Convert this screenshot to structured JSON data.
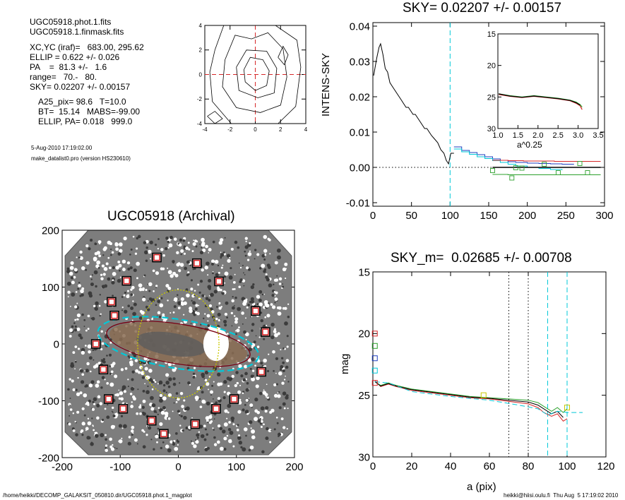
{
  "info": {
    "files": [
      "UGC05918.phot.1.fits",
      "UGC05918.1.finmask.fits"
    ],
    "params": [
      "XC,YC (iraf)=   683.00, 295.62",
      "ELLIP = 0.622 +/- 0.026",
      "PA    =  81.3 +/-   1.6",
      "range=   70.-   80.",
      "SKY= 0.02207 +/- 0.00157"
    ],
    "derived": [
      "A25_pix= 98.6   T=10.0",
      "BT=  15.14   MABS=-99.00",
      "ELLIP, PA= 0.018   999.0"
    ],
    "date": "5-Aug-2010 17:19:02.00",
    "program": "make_datalist0.pro (version HS230610)"
  },
  "footer": {
    "path": "/home/heikki/DECOMP_GALAKSIT_050810.dir/UGC05918.phot.1_magplot",
    "user": "heikki@hiisi.oulu.fi  Thu Aug  5 17:19:02 2010"
  },
  "colors": {
    "black": "#000000",
    "red": "#d62728",
    "green": "#2ca02c",
    "blue": "#1f3fbf",
    "cyan": "#00c8d8",
    "yellow": "#c8c800",
    "maroon": "#7a0010",
    "grey": "#9a9a9a"
  },
  "chart_data": [
    {
      "id": "contour",
      "type": "contour",
      "title": "",
      "xlim": [
        -4,
        4
      ],
      "ylim": [
        -4,
        4
      ],
      "xticks": [
        "-4",
        "-2",
        "0",
        "2",
        "4"
      ],
      "yticks": [
        "-4",
        "-2",
        "0",
        "2",
        "4"
      ],
      "crosshair": [
        0,
        0
      ]
    },
    {
      "id": "sky",
      "type": "line",
      "title": "SKY= 0.02207 +/- 0.00157",
      "xlabel": "",
      "ylabel": "INTENS-SKY",
      "xlim": [
        0,
        300
      ],
      "ylim": [
        -0.011,
        0.041
      ],
      "xticks": [
        "0",
        "50",
        "100",
        "150",
        "200",
        "250",
        "300"
      ],
      "yticks": [
        "-0.01",
        "0.00",
        "0.01",
        "0.02",
        "0.03",
        "0.04"
      ],
      "vline": 100,
      "profile": [
        [
          1,
          0.026
        ],
        [
          5,
          0.031
        ],
        [
          8,
          0.034
        ],
        [
          10,
          0.035
        ],
        [
          13,
          0.032
        ],
        [
          16,
          0.028
        ],
        [
          19,
          0.027
        ],
        [
          22,
          0.024
        ],
        [
          25,
          0.023
        ],
        [
          28,
          0.022
        ],
        [
          31,
          0.021
        ],
        [
          34,
          0.02
        ],
        [
          37,
          0.019
        ],
        [
          40,
          0.018
        ],
        [
          43,
          0.017
        ],
        [
          46,
          0.017
        ],
        [
          49,
          0.016
        ],
        [
          52,
          0.015
        ],
        [
          55,
          0.015
        ],
        [
          58,
          0.014
        ],
        [
          61,
          0.013
        ],
        [
          64,
          0.012
        ],
        [
          67,
          0.011
        ],
        [
          70,
          0.011
        ],
        [
          73,
          0.01
        ],
        [
          76,
          0.009
        ],
        [
          80,
          0.008
        ],
        [
          84,
          0.007
        ],
        [
          88,
          0.005
        ],
        [
          92,
          0.004
        ],
        [
          95,
          0.002
        ],
        [
          98,
          0.001
        ],
        [
          101,
          0.004
        ],
        [
          105,
          0.004
        ]
      ],
      "series": [
        {
          "color": "blue",
          "values": [
            [
              105,
              0.0058
            ],
            [
              115,
              0.0048
            ],
            [
              125,
              0.0042
            ],
            [
              135,
              0.0036
            ],
            [
              145,
              0.003
            ],
            [
              155,
              0.0024
            ],
            [
              165,
              0.002
            ],
            [
              175,
              0.0016
            ],
            [
              185,
              0.0014
            ],
            [
              200,
              0.0012
            ],
            [
              215,
              0.0011
            ],
            [
              230,
              0.001
            ],
            [
              245,
              0.0009
            ],
            [
              260,
              0.0008
            ]
          ]
        },
        {
          "color": "cyan",
          "values": [
            [
              105,
              0.0052
            ],
            [
              115,
              0.0044
            ],
            [
              125,
              0.0037
            ],
            [
              135,
              0.003
            ],
            [
              145,
              0.0025
            ],
            [
              155,
              0.0019
            ],
            [
              165,
              0.0014
            ],
            [
              175,
              0.0009
            ],
            [
              185,
              0.0004
            ],
            [
              200,
              0.0
            ],
            [
              215,
              -0.0003
            ],
            [
              230,
              -0.0006
            ],
            [
              245,
              -0.0008
            ]
          ]
        },
        {
          "color": "red",
          "values": [
            [
              155,
              0.002
            ],
            [
              175,
              0.0019
            ],
            [
              195,
              0.0018
            ],
            [
              215,
              0.0018
            ],
            [
              235,
              0.0017
            ],
            [
              255,
              0.0017
            ],
            [
              275,
              0.0017
            ],
            [
              295,
              0.0017
            ]
          ]
        },
        {
          "color": "black",
          "values": [
            [
              155,
              0.0
            ],
            [
              175,
              0.0
            ],
            [
              195,
              0.0
            ],
            [
              215,
              0.0
            ],
            [
              235,
              0.0
            ],
            [
              255,
              0.0
            ],
            [
              275,
              0.0
            ],
            [
              295,
              0.0
            ]
          ]
        },
        {
          "color": "green",
          "values": [
            [
              155,
              -0.002
            ],
            [
              175,
              -0.0021
            ],
            [
              195,
              -0.0021
            ],
            [
              215,
              -0.0021
            ],
            [
              235,
              -0.0021
            ],
            [
              255,
              -0.0021
            ],
            [
              275,
              -0.0021
            ],
            [
              295,
              -0.0021
            ]
          ]
        }
      ],
      "squares": [
        [
          155,
          -0.0009
        ],
        [
          185,
          -0.0001
        ],
        [
          193,
          -0.0002
        ],
        [
          180,
          -0.003
        ],
        [
          222,
          0.0009
        ],
        [
          268,
          0.0011
        ],
        [
          278,
          -0.0015
        ],
        [
          240,
          -0.0015
        ]
      ],
      "inset": {
        "xlim": [
          1.0,
          3.5
        ],
        "ylim": [
          15,
          30
        ],
        "xlabel": "a^0.25",
        "xticks": [
          "1.0",
          "1.5",
          "2.0",
          "2.5",
          "3.0",
          "3.5"
        ],
        "yticks": [
          "15",
          "20",
          "25",
          "30"
        ],
        "series": [
          {
            "color": "red",
            "values": [
              [
                1.02,
                24.6
              ],
              [
                1.3,
                24.9
              ],
              [
                1.6,
                25.1
              ],
              [
                1.9,
                24.9
              ],
              [
                2.2,
                25.1
              ],
              [
                2.5,
                25.3
              ],
              [
                2.8,
                25.6
              ],
              [
                2.95,
                26.0
              ],
              [
                3.05,
                26.4
              ],
              [
                3.1,
                27.0
              ]
            ]
          },
          {
            "color": "green",
            "values": [
              [
                1.02,
                24.5
              ],
              [
                1.3,
                24.8
              ],
              [
                1.6,
                25.0
              ],
              [
                1.9,
                24.8
              ],
              [
                2.2,
                25.0
              ],
              [
                2.5,
                25.2
              ],
              [
                2.8,
                25.5
              ],
              [
                2.95,
                25.8
              ],
              [
                3.05,
                26.2
              ],
              [
                3.1,
                26.6
              ]
            ]
          },
          {
            "color": "black",
            "values": [
              [
                1.02,
                24.5
              ],
              [
                1.3,
                24.85
              ],
              [
                1.6,
                25.05
              ],
              [
                1.9,
                24.85
              ],
              [
                2.2,
                25.05
              ],
              [
                2.5,
                25.25
              ],
              [
                2.8,
                25.55
              ],
              [
                2.95,
                25.9
              ],
              [
                3.05,
                26.3
              ]
            ]
          }
        ]
      }
    },
    {
      "id": "image",
      "type": "image",
      "title": "UGC05918 (Archival)",
      "xlim": [
        -200,
        200
      ],
      "ylim": [
        -200,
        200
      ],
      "xticks": [
        "-200",
        "-100",
        "0",
        "100",
        "200"
      ],
      "yticks": [
        "-200",
        "-100",
        "0",
        "100",
        "200"
      ],
      "stars": [
        [
          -37,
          152
        ],
        [
          32,
          142
        ],
        [
          -89,
          111
        ],
        [
          70,
          110
        ],
        [
          -115,
          74
        ],
        [
          -110,
          50
        ],
        [
          133,
          58
        ],
        [
          150,
          21
        ],
        [
          -142,
          0
        ],
        [
          -129,
          -45
        ],
        [
          143,
          -49
        ],
        [
          -120,
          -97
        ],
        [
          -95,
          -114
        ],
        [
          96,
          -97
        ],
        [
          65,
          -114
        ],
        [
          -46,
          -135
        ],
        [
          -25,
          -158
        ],
        [
          29,
          -141
        ]
      ],
      "ellipses": [
        {
          "color": "cyan",
          "a": 140,
          "b": 43,
          "pa": -9
        },
        {
          "color": "maroon",
          "a": 125,
          "b": 35,
          "pa": -9
        },
        {
          "color": "yellow",
          "a": 70,
          "b": 95,
          "pa": 0
        }
      ]
    },
    {
      "id": "mag",
      "type": "line",
      "title": "SKY_m=  0.02685 +/- 0.00708",
      "xlabel": "a (pix)",
      "ylabel": "mag",
      "xlim": [
        0,
        120
      ],
      "ylim": [
        30,
        15
      ],
      "xticks": [
        "0",
        "20",
        "40",
        "60",
        "80",
        "100",
        "120"
      ],
      "yticks": [
        "15",
        "20",
        "25",
        "30"
      ],
      "vlines_dotted": [
        70,
        80
      ],
      "vlines_dashed": [
        90,
        100
      ],
      "series": [
        {
          "color": "red",
          "values": [
            [
              1,
              23.8
            ],
            [
              4,
              24.3
            ],
            [
              8,
              24.1
            ],
            [
              12,
              24.3
            ],
            [
              20,
              24.6
            ],
            [
              30,
              24.8
            ],
            [
              40,
              25.0
            ],
            [
              50,
              25.2
            ],
            [
              60,
              25.3
            ],
            [
              70,
              25.5
            ],
            [
              80,
              25.7
            ],
            [
              85,
              26.0
            ],
            [
              88,
              26.4
            ],
            [
              92,
              26.7
            ],
            [
              95,
              26.5
            ],
            [
              98,
              27.1
            ],
            [
              100,
              26.9
            ]
          ]
        },
        {
          "color": "green",
          "values": [
            [
              1,
              23.9
            ],
            [
              4,
              24.2
            ],
            [
              8,
              24.0
            ],
            [
              12,
              24.2
            ],
            [
              20,
              24.5
            ],
            [
              30,
              24.7
            ],
            [
              40,
              24.9
            ],
            [
              50,
              25.1
            ],
            [
              60,
              25.2
            ],
            [
              70,
              25.3
            ],
            [
              80,
              25.4
            ],
            [
              85,
              25.6
            ],
            [
              88,
              25.9
            ],
            [
              92,
              26.3
            ],
            [
              95,
              26.0
            ],
            [
              98,
              26.4
            ],
            [
              100,
              26.1
            ]
          ]
        },
        {
          "color": "black",
          "values": [
            [
              1,
              23.9
            ],
            [
              4,
              24.25
            ],
            [
              8,
              24.05
            ],
            [
              12,
              24.25
            ],
            [
              20,
              24.55
            ],
            [
              30,
              24.75
            ],
            [
              40,
              24.95
            ],
            [
              50,
              25.15
            ],
            [
              60,
              25.25
            ],
            [
              70,
              25.4
            ],
            [
              80,
              25.55
            ],
            [
              85,
              25.8
            ],
            [
              88,
              26.1
            ],
            [
              92,
              26.5
            ],
            [
              95,
              26.3
            ],
            [
              98,
              26.8
            ]
          ]
        },
        {
          "color": "cyan",
          "values": [
            [
              1,
              23.9
            ],
            [
              8,
              24.0
            ],
            [
              20,
              24.7
            ],
            [
              40,
              25.1
            ],
            [
              60,
              25.4
            ],
            [
              75,
              25.8
            ],
            [
              85,
              26.1
            ],
            [
              90,
              26.6
            ],
            [
              95,
              26.3
            ],
            [
              100,
              26.4
            ],
            [
              108,
              26.4
            ]
          ]
        }
      ],
      "squares": [
        [
          1,
          20.0,
          "red"
        ],
        [
          1,
          21.0,
          "green"
        ],
        [
          1,
          22.0,
          "blue"
        ],
        [
          1,
          23.0,
          "cyan"
        ],
        [
          1,
          24.0,
          "red"
        ],
        [
          57,
          25.0,
          "yellow"
        ],
        [
          100,
          26.0,
          "yellow"
        ]
      ]
    }
  ]
}
